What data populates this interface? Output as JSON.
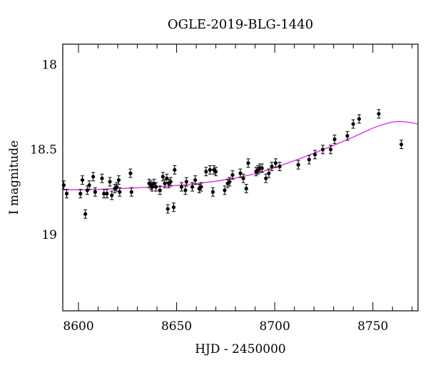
{
  "chart_data": {
    "type": "scatter",
    "title": "OGLE-2019-BLG-1440",
    "xlabel": "HJD - 2450000",
    "ylabel": "I magnitude",
    "xlim": [
      8592,
      8773
    ],
    "ylim": [
      19.45,
      17.88
    ],
    "y_inverted": true,
    "xticks": [
      8600,
      8650,
      8700,
      8750
    ],
    "yticks": [
      18,
      18.5,
      19
    ],
    "xtick_labels": [
      "8600",
      "8650",
      "8700",
      "8750"
    ],
    "ytick_labels": [
      "18",
      "18.5",
      "19"
    ],
    "grid": false,
    "colors": {
      "points": "#000000",
      "model": "#e020e0"
    },
    "series": [
      {
        "kind": "points_with_errorbars",
        "x": [
          8592.5,
          8594,
          8601,
          8602,
          8603.5,
          8604.5,
          8605.5,
          8607.5,
          8608.5,
          8612,
          8613,
          8614.5,
          8616,
          8617,
          8618.5,
          8619.5,
          8620.5,
          8621,
          8626.5,
          8627,
          8636,
          8637,
          8637.5,
          8638.5,
          8639.5,
          8641.5,
          8643,
          8644,
          8645,
          8645.5,
          8646,
          8647,
          8648.5,
          8649,
          8652.5,
          8654.5,
          8655,
          8658,
          8659.5,
          8661.5,
          8662.5,
          8665,
          8667,
          8668.5,
          8669,
          8670,
          8674.5,
          8676,
          8677,
          8678.5,
          8682.5,
          8684,
          8685.5,
          8686.5,
          8690.5,
          8691.5,
          8692.5,
          8693.5,
          8695.5,
          8697,
          8698.5,
          8700.5,
          8702.5,
          8712,
          8717.5,
          8720.5,
          8724.5,
          8728.5,
          8730.5,
          8737,
          8740,
          8743,
          8753,
          8764.5
        ],
        "y": [
          18.71,
          18.76,
          18.76,
          18.68,
          18.88,
          18.74,
          18.71,
          18.66,
          18.75,
          18.67,
          18.76,
          18.76,
          18.69,
          18.77,
          18.73,
          18.72,
          18.68,
          18.75,
          18.64,
          18.75,
          18.7,
          18.71,
          18.72,
          18.7,
          18.72,
          18.74,
          18.66,
          18.7,
          18.67,
          18.85,
          18.7,
          18.69,
          18.84,
          18.62,
          18.72,
          18.74,
          18.69,
          18.72,
          18.68,
          18.73,
          18.72,
          18.63,
          18.62,
          18.75,
          18.62,
          18.63,
          18.74,
          18.7,
          18.69,
          18.65,
          18.64,
          18.67,
          18.73,
          18.58,
          18.63,
          18.62,
          18.61,
          18.61,
          18.67,
          18.64,
          18.6,
          18.58,
          18.6,
          18.59,
          18.56,
          18.53,
          18.5,
          18.5,
          18.44,
          18.42,
          18.35,
          18.32,
          18.29,
          18.47
        ],
        "yerr": [
          0.025,
          0.025,
          0.025,
          0.025,
          0.025,
          0.025,
          0.025,
          0.025,
          0.025,
          0.025,
          0.025,
          0.025,
          0.025,
          0.025,
          0.025,
          0.025,
          0.025,
          0.025,
          0.025,
          0.025,
          0.025,
          0.025,
          0.025,
          0.025,
          0.025,
          0.025,
          0.025,
          0.025,
          0.025,
          0.025,
          0.025,
          0.025,
          0.025,
          0.025,
          0.025,
          0.025,
          0.025,
          0.025,
          0.025,
          0.025,
          0.025,
          0.025,
          0.025,
          0.025,
          0.025,
          0.025,
          0.025,
          0.025,
          0.025,
          0.025,
          0.025,
          0.025,
          0.025,
          0.025,
          0.025,
          0.025,
          0.025,
          0.025,
          0.025,
          0.025,
          0.025,
          0.025,
          0.025,
          0.025,
          0.025,
          0.025,
          0.025,
          0.025,
          0.025,
          0.025,
          0.025,
          0.025,
          0.025,
          0.025
        ]
      },
      {
        "kind": "model_curve",
        "x": [
          8592,
          8600,
          8610,
          8620,
          8630,
          8640,
          8650,
          8660,
          8670,
          8680,
          8690,
          8700,
          8710,
          8720,
          8730,
          8740,
          8750,
          8755,
          8760,
          8763,
          8766,
          8770,
          8773
        ],
        "y": [
          18.737,
          18.737,
          18.735,
          18.731,
          18.726,
          18.72,
          18.712,
          18.701,
          18.687,
          18.668,
          18.643,
          18.607,
          18.566,
          18.522,
          18.476,
          18.427,
          18.374,
          18.353,
          18.338,
          18.335,
          18.336,
          18.342,
          18.35
        ]
      }
    ]
  }
}
